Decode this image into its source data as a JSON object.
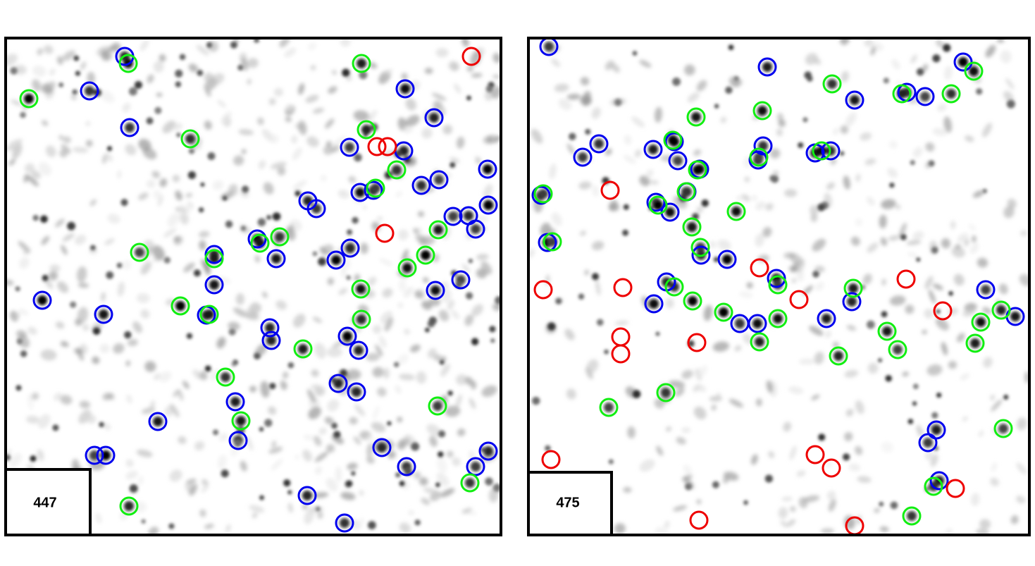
{
  "panels": [
    {
      "label": "447"
    },
    {
      "label": "475"
    }
  ]
}
